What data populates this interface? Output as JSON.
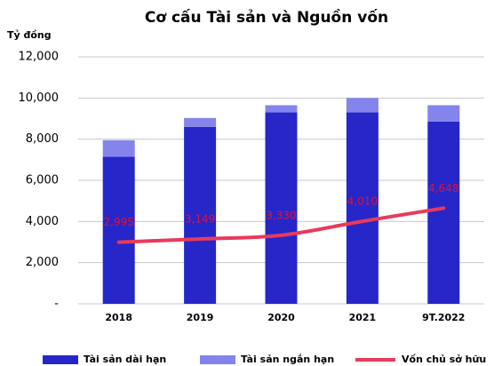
{
  "chart_data": {
    "type": "bar_line",
    "title": "Cơ cấu Tài sản và Nguồn vốn",
    "y_label": "Tỷ đồng",
    "categories": [
      "2018",
      "2019",
      "2020",
      "2021",
      "9T.2022"
    ],
    "series": [
      {
        "name": "Tài sản dài hạn",
        "type": "bar",
        "color": "#2626c9",
        "values": [
          7150,
          8600,
          9300,
          9300,
          8850
        ]
      },
      {
        "name": "Tài sản ngắn hạn",
        "type": "bar",
        "color": "#8484ec",
        "values": [
          800,
          430,
          350,
          700,
          800
        ]
      },
      {
        "name": "Vốn chủ sở hữu",
        "type": "line",
        "color": "#e83a5c",
        "values": [
          2995,
          3149,
          3330,
          4010,
          4648
        ],
        "value_labels": [
          "2,995",
          "3,149",
          "3,330",
          "4,010",
          "4,648"
        ]
      }
    ],
    "ylim": [
      0,
      12000
    ],
    "yticks": [
      {
        "value": 0,
        "label": "-"
      },
      {
        "value": 2000,
        "label": "2,000"
      },
      {
        "value": 4000,
        "label": "4,000"
      },
      {
        "value": 6000,
        "label": "6,000"
      },
      {
        "value": 8000,
        "label": "8,000"
      },
      {
        "value": 10000,
        "label": "10,000"
      },
      {
        "value": 12000,
        "label": "12,000"
      }
    ],
    "grid": true
  }
}
